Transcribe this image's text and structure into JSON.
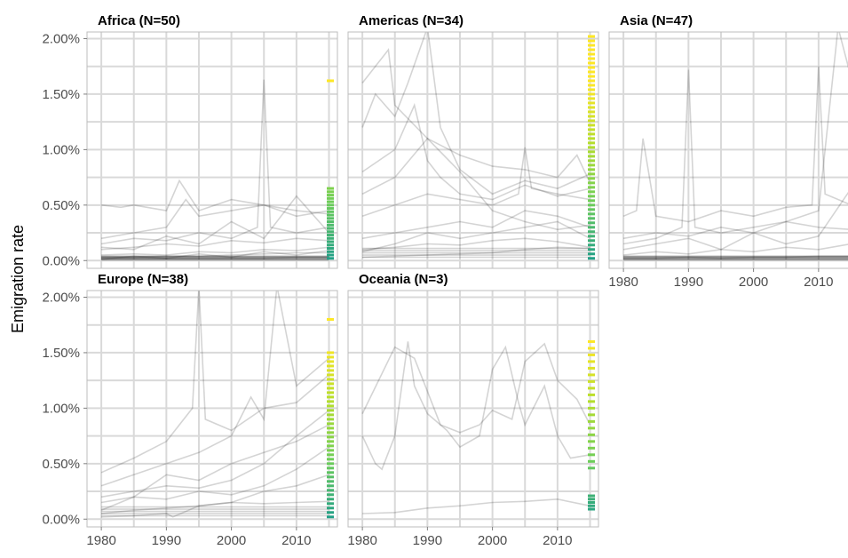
{
  "chart_data": {
    "type": "line",
    "chart_kind": "faceted small multiples with side rug",
    "ylabel": "Emigration rate",
    "xlabel": "",
    "x_range": [
      1980,
      2015
    ],
    "y_range": [
      0,
      0.02
    ],
    "x_ticks": [
      1980,
      1990,
      2000,
      2010
    ],
    "x_tick_labels": [
      "1980",
      "1990",
      "2000",
      "2010"
    ],
    "y_ticks": [
      0,
      0.005,
      0.01,
      0.015,
      0.02
    ],
    "y_tick_labels": [
      "0.00%",
      "0.50%",
      "1.00%",
      "1.50%",
      "2.00%"
    ],
    "grid": true,
    "rug_color_scale": [
      "#1f9e89",
      "#6ece58",
      "#b5de2b",
      "#fde725"
    ],
    "line_color": "#000000",
    "panels": [
      {
        "title": "Africa (N=50)",
        "series": [
          {
            "x": [
              1980,
              1985,
              1990,
              1995,
              2000,
              2005,
              2010,
              2015
            ],
            "y": [
              0.0002,
              0.0002,
              0.0002,
              0.0002,
              0.0002,
              0.0002,
              0.0003,
              0.0003
            ]
          },
          {
            "x": [
              1980,
              1985,
              1990,
              1995,
              2000,
              2005,
              2010,
              2015
            ],
            "y": [
              0.0003,
              0.0003,
              0.0004,
              0.0004,
              0.0005,
              0.0006,
              0.0007,
              0.0007
            ]
          },
          {
            "x": [
              1980,
              1985,
              1990,
              1995,
              2000,
              2005,
              2010,
              2015
            ],
            "y": [
              0.001,
              0.0012,
              0.0015,
              0.0013,
              0.0018,
              0.0016,
              0.002,
              0.0018
            ]
          },
          {
            "x": [
              1980,
              1985,
              1990,
              1995,
              2000,
              2005,
              2010,
              2015
            ],
            "y": [
              0.0005,
              0.0006,
              0.0005,
              0.0008,
              0.0007,
              0.001,
              0.0009,
              0.0012
            ]
          },
          {
            "x": [
              1980,
              1985,
              1990,
              1993,
              1995,
              2000,
              2005,
              2010,
              2015
            ],
            "y": [
              0.002,
              0.0025,
              0.003,
              0.0055,
              0.004,
              0.0045,
              0.005,
              0.004,
              0.0045
            ]
          },
          {
            "x": [
              1980,
              1985,
              1990,
              1995,
              2000,
              2004,
              2005,
              2006,
              2010,
              2015
            ],
            "y": [
              0.0015,
              0.002,
              0.0018,
              0.0025,
              0.002,
              0.003,
              0.0163,
              0.003,
              0.0025,
              0.003
            ]
          },
          {
            "x": [
              1980,
              1983,
              1985,
              1990,
              1992,
              1995,
              2000,
              2005,
              2010,
              2015
            ],
            "y": [
              0.005,
              0.0048,
              0.005,
              0.0045,
              0.0072,
              0.0045,
              0.0055,
              0.005,
              0.0045,
              0.0042
            ]
          },
          {
            "x": [
              1980,
              1985,
              1990,
              1995,
              2000,
              2005,
              2010,
              2015
            ],
            "y": [
              0.0012,
              0.001,
              0.0022,
              0.0015,
              0.0035,
              0.002,
              0.0058,
              0.0025
            ]
          },
          {
            "x": [
              1980,
              1985,
              1990,
              1995,
              2000,
              2005,
              2010,
              2015
            ],
            "y": [
              0.0001,
              0.0004,
              0.0002,
              0.0006,
              0.0003,
              0.0008,
              0.0005,
              0.0009
            ]
          }
        ],
        "rug": [
          0.0002,
          0.0005,
          0.0008,
          0.0011,
          0.0014,
          0.0017,
          0.002,
          0.0023,
          0.0026,
          0.0029,
          0.0032,
          0.0035,
          0.0038,
          0.0041,
          0.0044,
          0.0047,
          0.005,
          0.0053,
          0.0056,
          0.0059,
          0.0062,
          0.0065,
          0.0162
        ]
      },
      {
        "title": "Americas (N=34)",
        "series": [
          {
            "x": [
              1980,
              1985,
              1990,
              1995,
              2000,
              2005,
              2010,
              2015
            ],
            "y": [
              0.0003,
              0.0004,
              0.0005,
              0.0006,
              0.0007,
              0.001,
              0.0012,
              0.0011
            ]
          },
          {
            "x": [
              1980,
              1985,
              1990,
              1995,
              2000,
              2005,
              2010,
              2015
            ],
            "y": [
              0.001,
              0.0012,
              0.0015,
              0.0014,
              0.0018,
              0.002,
              0.0017,
              0.0012
            ]
          },
          {
            "x": [
              1980,
              1985,
              1990,
              1995,
              2000,
              2005,
              2010,
              2015
            ],
            "y": [
              0.002,
              0.0025,
              0.003,
              0.0035,
              0.003,
              0.0045,
              0.004,
              0.003
            ]
          },
          {
            "x": [
              1980,
              1982,
              1985,
              1987,
              1990,
              1992,
              1995,
              2000,
              2005,
              2010,
              2015
            ],
            "y": [
              0.012,
              0.015,
              0.013,
              0.016,
              0.021,
              0.012,
              0.0082,
              0.006,
              0.0072,
              0.0065,
              0.0078
            ]
          },
          {
            "x": [
              1980,
              1985,
              1988,
              1990,
              1992,
              1995,
              2000,
              2005,
              2010,
              2015
            ],
            "y": [
              0.008,
              0.01,
              0.014,
              0.009,
              0.0075,
              0.006,
              0.0055,
              0.0068,
              0.0058,
              0.0065
            ]
          },
          {
            "x": [
              1980,
              1985,
              1990,
              1995,
              2000,
              2004,
              2005,
              2006,
              2010,
              2015
            ],
            "y": [
              0.004,
              0.005,
              0.006,
              0.0055,
              0.005,
              0.006,
              0.0102,
              0.0065,
              0.006,
              0.0055
            ]
          },
          {
            "x": [
              1980,
              1984,
              1985,
              1990,
              1995,
              2000,
              2005,
              2010,
              2013,
              2015
            ],
            "y": [
              0.016,
              0.019,
              0.014,
              0.011,
              0.0095,
              0.0085,
              0.0082,
              0.0075,
              0.0095,
              0.007
            ]
          },
          {
            "x": [
              1980,
              1985,
              1990,
              1995,
              2000,
              2005,
              2010,
              2015
            ],
            "y": [
              0.0008,
              0.0015,
              0.0025,
              0.002,
              0.0025,
              0.003,
              0.0035,
              0.002
            ]
          },
          {
            "x": [
              1980,
              1985,
              1990,
              1995,
              2000,
              2005,
              2010,
              2015
            ],
            "y": [
              0.006,
              0.0075,
              0.011,
              0.008,
              0.0045,
              0.0035,
              0.0028,
              0.0032
            ]
          }
        ],
        "rug": [
          0.0002,
          0.0006,
          0.001,
          0.0014,
          0.0018,
          0.0022,
          0.0026,
          0.003,
          0.0034,
          0.0038,
          0.0042,
          0.0046,
          0.005,
          0.0054,
          0.0058,
          0.0062,
          0.0066,
          0.007,
          0.0074,
          0.0078,
          0.0082,
          0.0086,
          0.009,
          0.0094,
          0.0098,
          0.0102,
          0.0106,
          0.011,
          0.0114,
          0.0118,
          0.0122,
          0.0126,
          0.013,
          0.0134,
          0.0138,
          0.0142,
          0.0146,
          0.015,
          0.0154,
          0.0158,
          0.0162,
          0.0166,
          0.017,
          0.0174,
          0.0178,
          0.0182,
          0.0186,
          0.019,
          0.0194,
          0.0198,
          0.0202
        ]
      },
      {
        "title": "Asia (N=47)",
        "series": [
          {
            "x": [
              1980,
              1985,
              1990,
              1995,
              2000,
              2005,
              2010,
              2015
            ],
            "y": [
              0.0002,
              0.0002,
              0.0003,
              0.0002,
              0.0003,
              0.0003,
              0.0004,
              0.0004
            ]
          },
          {
            "x": [
              1980,
              1985,
              1990,
              1995,
              2000,
              2005,
              2010,
              2015
            ],
            "y": [
              0.0005,
              0.0008,
              0.0006,
              0.001,
              0.0008,
              0.0012,
              0.001,
              0.0015
            ]
          },
          {
            "x": [
              1980,
              1985,
              1989,
              1990,
              1991,
              1995,
              2000,
              2005,
              2010,
              2015
            ],
            "y": [
              0.0015,
              0.002,
              0.003,
              0.0172,
              0.003,
              0.0025,
              0.003,
              0.0035,
              0.003,
              0.0028
            ]
          },
          {
            "x": [
              1980,
              1982,
              1983,
              1985,
              1990,
              1995,
              2000,
              2005,
              2009,
              2010,
              2011,
              2015
            ],
            "y": [
              0.004,
              0.0045,
              0.011,
              0.004,
              0.0035,
              0.0045,
              0.004,
              0.0048,
              0.005,
              0.0175,
              0.006,
              0.005
            ]
          },
          {
            "x": [
              1980,
              1985,
              1990,
              1995,
              2000,
              2005,
              2010,
              2013,
              2015
            ],
            "y": [
              0.002,
              0.0025,
              0.0022,
              0.003,
              0.0025,
              0.0035,
              0.0045,
              0.021,
              0.0165
            ]
          },
          {
            "x": [
              1980,
              1985,
              1990,
              1995,
              2000,
              2005,
              2010,
              2015
            ],
            "y": [
              0.001,
              0.0015,
              0.002,
              0.001,
              0.0025,
              0.0015,
              0.0022,
              0.0065
            ]
          }
        ],
        "rug": []
      },
      {
        "title": "Europe (N=38)",
        "series": [
          {
            "x": [
              1980,
              1985,
              1990,
              1995,
              2000,
              2005,
              2010,
              2015
            ],
            "y": [
              0.0005,
              0.0008,
              0.001,
              0.0012,
              0.0015,
              0.0014,
              0.0015,
              0.0016
            ]
          },
          {
            "x": [
              1980,
              1985,
              1990,
              1995,
              2000,
              2005,
              2010,
              2015
            ],
            "y": [
              0.0015,
              0.002,
              0.0018,
              0.0025,
              0.0022,
              0.003,
              0.0045,
              0.0065
            ]
          },
          {
            "x": [
              1980,
              1985,
              1990,
              1995,
              2000,
              2005,
              2010,
              2015
            ],
            "y": [
              0.002,
              0.0025,
              0.003,
              0.0028,
              0.0035,
              0.005,
              0.0075,
              0.0098
            ]
          },
          {
            "x": [
              1980,
              1985,
              1990,
              1994,
              1995,
              1996,
              2000,
              2005,
              2010,
              2015
            ],
            "y": [
              0.0042,
              0.0055,
              0.007,
              0.01,
              0.021,
              0.009,
              0.008,
              0.01,
              0.0105,
              0.013
            ]
          },
          {
            "x": [
              1980,
              1985,
              1990,
              1995,
              2000,
              2003,
              2005,
              2007,
              2010,
              2015
            ],
            "y": [
              0.003,
              0.004,
              0.005,
              0.006,
              0.0075,
              0.011,
              0.009,
              0.021,
              0.012,
              0.0145
            ]
          },
          {
            "x": [
              1980,
              1985,
              1990,
              1995,
              2000,
              2005,
              2010,
              2015
            ],
            "y": [
              0.0008,
              0.002,
              0.004,
              0.0035,
              0.005,
              0.006,
              0.007,
              0.0085
            ]
          },
          {
            "x": [
              1980,
              1985,
              1990,
              1991,
              1995,
              2000,
              2005,
              2010,
              2015
            ],
            "y": [
              0.0002,
              0.0003,
              0.0005,
              0.0002,
              0.0012,
              0.0015,
              0.0025,
              0.003,
              0.004
            ]
          }
        ],
        "rug": [
          0.0002,
          0.0006,
          0.001,
          0.0014,
          0.0018,
          0.0022,
          0.0026,
          0.003,
          0.0034,
          0.0038,
          0.0042,
          0.0046,
          0.005,
          0.0054,
          0.0058,
          0.0062,
          0.0066,
          0.007,
          0.0074,
          0.0078,
          0.0082,
          0.0086,
          0.009,
          0.0094,
          0.0098,
          0.0102,
          0.0106,
          0.011,
          0.0114,
          0.0118,
          0.0122,
          0.0126,
          0.013,
          0.0134,
          0.0138,
          0.0142,
          0.0146,
          0.015,
          0.018
        ]
      },
      {
        "title": "Oceania (N=3)",
        "series": [
          {
            "x": [
              1980,
              1985,
              1990,
              1995,
              2000,
              2005,
              2010,
              2015
            ],
            "y": [
              0.0005,
              0.0006,
              0.001,
              0.0012,
              0.0015,
              0.0016,
              0.0018,
              0.0012
            ]
          },
          {
            "x": [
              1980,
              1982,
              1983,
              1985,
              1987,
              1988,
              1990,
              1993,
              1995,
              1998,
              2000,
              2002,
              2004,
              2005,
              2008,
              2010,
              2012,
              2015
            ],
            "y": [
              0.0075,
              0.005,
              0.0045,
              0.0075,
              0.016,
              0.012,
              0.0095,
              0.008,
              0.0065,
              0.0075,
              0.0135,
              0.0155,
              0.0105,
              0.0085,
              0.012,
              0.0075,
              0.0055,
              0.0058
            ]
          },
          {
            "x": [
              1980,
              1985,
              1988,
              1990,
              1992,
              1995,
              1998,
              2000,
              2003,
              2005,
              2008,
              2010,
              2013,
              2015
            ],
            "y": [
              0.0095,
              0.0155,
              0.0145,
              0.0115,
              0.0085,
              0.0078,
              0.0085,
              0.0098,
              0.009,
              0.0142,
              0.0158,
              0.0125,
              0.0108,
              0.0085
            ]
          }
        ],
        "rug": [
          0.0009,
          0.0012,
          0.0015,
          0.0018,
          0.0021,
          0.0046,
          0.0052,
          0.0058,
          0.0064,
          0.007,
          0.0076,
          0.0082,
          0.0088,
          0.0094,
          0.01,
          0.0106,
          0.0112,
          0.0118,
          0.0124,
          0.013,
          0.0136,
          0.0142,
          0.0148,
          0.0154,
          0.016
        ]
      }
    ]
  }
}
